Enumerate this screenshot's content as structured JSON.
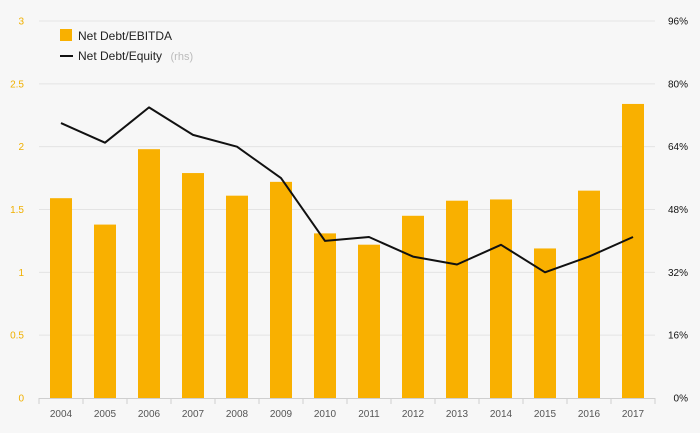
{
  "chart_data": {
    "type": "bar",
    "categories": [
      "2004",
      "2005",
      "2006",
      "2007",
      "2008",
      "2009",
      "2010",
      "2011",
      "2012",
      "2013",
      "2014",
      "2015",
      "2016",
      "2017"
    ],
    "series": [
      {
        "name": "Net Debt/EBITDA",
        "type": "bar",
        "axis": "left",
        "color": "#f9b000",
        "values": [
          1.59,
          1.38,
          1.98,
          1.79,
          1.61,
          1.72,
          1.31,
          1.22,
          1.45,
          1.57,
          1.58,
          1.19,
          1.65,
          2.34
        ]
      },
      {
        "name": "Net Debt/Equity",
        "name_suffix": "(rhs)",
        "type": "line",
        "axis": "right",
        "color": "#111111",
        "values": [
          70,
          65,
          74,
          67,
          64,
          56,
          40,
          41,
          36,
          34,
          39,
          32,
          36,
          41
        ]
      }
    ],
    "y_left": {
      "min": 0,
      "max": 3,
      "ticks": [
        0,
        0.5,
        1,
        1.5,
        2,
        2.5,
        3
      ],
      "tick_labels": [
        "0",
        "0.5",
        "1",
        "1.5",
        "2",
        "2.5",
        "3"
      ]
    },
    "y_right": {
      "min": 0,
      "max": 96,
      "ticks": [
        0,
        16,
        32,
        48,
        64,
        80,
        96
      ],
      "tick_labels": [
        "0%",
        "16%",
        "32%",
        "48%",
        "64%",
        "80%",
        "96%"
      ]
    },
    "title": "",
    "xlabel": "",
    "ylabel": "",
    "grid": true,
    "legend_position": "top-left"
  }
}
